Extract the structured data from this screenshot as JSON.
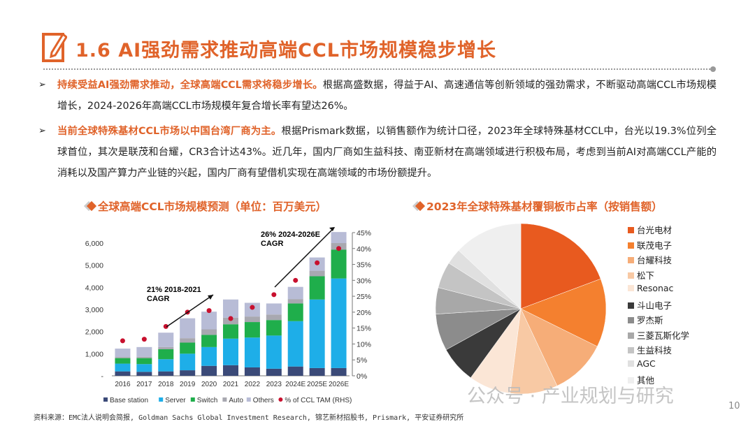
{
  "title": "1.6 AI强劲需求推动高端CCL市场规模稳步增长",
  "bullets": [
    {
      "highlight": "持续受益AI强劲需求推动，全球高端CCL需求将稳步增长。",
      "text": "根据高盛数据，得益于AI、高速通信等创新领域的强劲需求，不断驱动高端CCL市场规模增长，2024-2026年高端CCL市场规模年复合增长率有望达26%。"
    },
    {
      "highlight": "当前全球特殊基材CCL市场以中国台湾厂商为主。",
      "text": "根据Prismark数据，以销售额作为统计口径，2023年全球特殊基材CCL中，台光以19.3%位列全球首位，其次是联茂和台耀，CR3合计达43%。近几年，国内厂商如生益科技、南亚新材在高端领域进行积极布局，考虑到当前AI对高端CCL产能的消耗以及国产算力产业链的兴起，国内厂商有望借机实现在高端领域的市场份额提升。"
    }
  ],
  "left_section_title": "全球高端CCL市场规模预测（单位：百万美元）",
  "right_section_title": "2023年全球特殊基材覆铜板市占率（按销售额）",
  "footer": "资料来源：EMC法人说明会简报, Goldman Sachs Global Investment Research, 锦艺新材招股书, Prismark, 平安证券研究所",
  "watermark": "公众号 · 产业规划与研究",
  "page_number": "10",
  "colors": {
    "accent": "#e0632a"
  },
  "chart_data": [
    {
      "type": "bar",
      "stacked": true,
      "categories": [
        "2016",
        "2017",
        "2018",
        "2019",
        "2020",
        "2021",
        "2022",
        "2023",
        "2024E",
        "2025E",
        "2026E"
      ],
      "y_ticks": [
        "-",
        "1,000",
        "2,000",
        "3,000",
        "4,000",
        "5,000",
        "6,000"
      ],
      "y2_ticks": [
        "0%",
        "5%",
        "10%",
        "15%",
        "20%",
        "25%",
        "30%",
        "35%",
        "40%",
        "45%"
      ],
      "ylim": [
        0,
        6500
      ],
      "y2lim": [
        0,
        45
      ],
      "series": [
        {
          "name": "Base station",
          "color": "#3b4a78",
          "values": [
            200,
            180,
            200,
            250,
            450,
            480,
            380,
            320,
            420,
            350,
            350
          ]
        },
        {
          "name": "Server",
          "color": "#1eaee8",
          "values": [
            350,
            350,
            550,
            750,
            850,
            1200,
            1350,
            1500,
            2050,
            3100,
            4050
          ]
        },
        {
          "name": "Switch",
          "color": "#1fae4b",
          "values": [
            250,
            270,
            450,
            500,
            550,
            650,
            700,
            700,
            800,
            1050,
            1300
          ]
        },
        {
          "name": "Auto",
          "color": "#a8a8b0",
          "values": [
            50,
            60,
            100,
            200,
            250,
            300,
            250,
            250,
            200,
            250,
            300
          ]
        },
        {
          "name": "Others",
          "color": "#b8bcd6",
          "values": [
            380,
            440,
            650,
            900,
            800,
            820,
            620,
            500,
            550,
            600,
            500
          ]
        }
      ],
      "line_series": {
        "name": "% of CCL TAM (RHS)",
        "color": "#c8102e",
        "values": [
          11,
          11.5,
          15.5,
          20,
          20.5,
          18,
          21.5,
          25.5,
          30,
          35.5,
          40
        ]
      },
      "annotations": [
        {
          "text": "21% 2018-2021",
          "text2": "CAGR"
        },
        {
          "text": "26% 2024-2026E",
          "text2": "CAGR"
        }
      ]
    },
    {
      "type": "pie",
      "labels": [
        "台光电材",
        "联茂电子",
        "台耀科技",
        "松下",
        "Resonac",
        "斗山电子",
        "罗杰斯",
        "三菱瓦斯化学",
        "生益科技",
        "AGC",
        "其他"
      ],
      "values": [
        19.3,
        13,
        10.7,
        9,
        8,
        7,
        7,
        5,
        5,
        3,
        13
      ],
      "colors": [
        "#e85a1f",
        "#f4802f",
        "#f6ad78",
        "#f8c9a4",
        "#fbe6d6",
        "#3a3a3a",
        "#8c8c8c",
        "#a8a8a8",
        "#c4c4c4",
        "#e0e0e0",
        "#efefef"
      ]
    }
  ]
}
